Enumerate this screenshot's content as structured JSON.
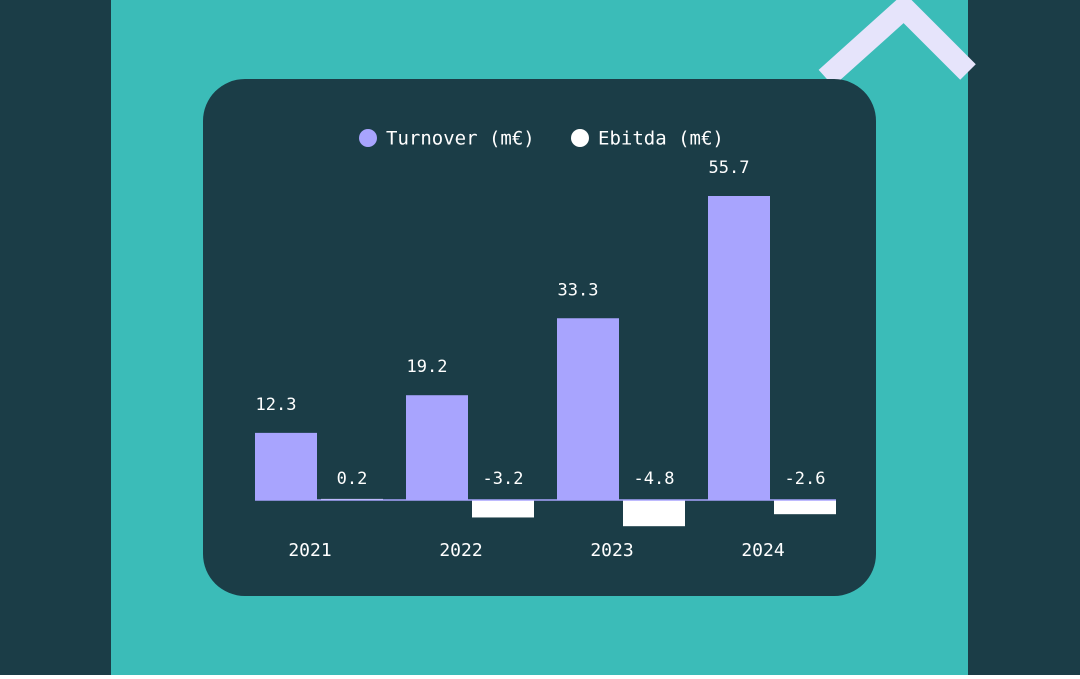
{
  "chart_data": {
    "type": "bar",
    "categories": [
      "2021",
      "2022",
      "2023",
      "2024"
    ],
    "series": [
      {
        "name": "Turnover (m€)",
        "color": "#a8a4fe",
        "values": [
          12.3,
          19.2,
          33.3,
          55.7
        ]
      },
      {
        "name": "Ebitda (m€)",
        "color": "#ffffff",
        "values": [
          0.2,
          -3.2,
          -4.8,
          -2.6
        ]
      }
    ]
  }
}
